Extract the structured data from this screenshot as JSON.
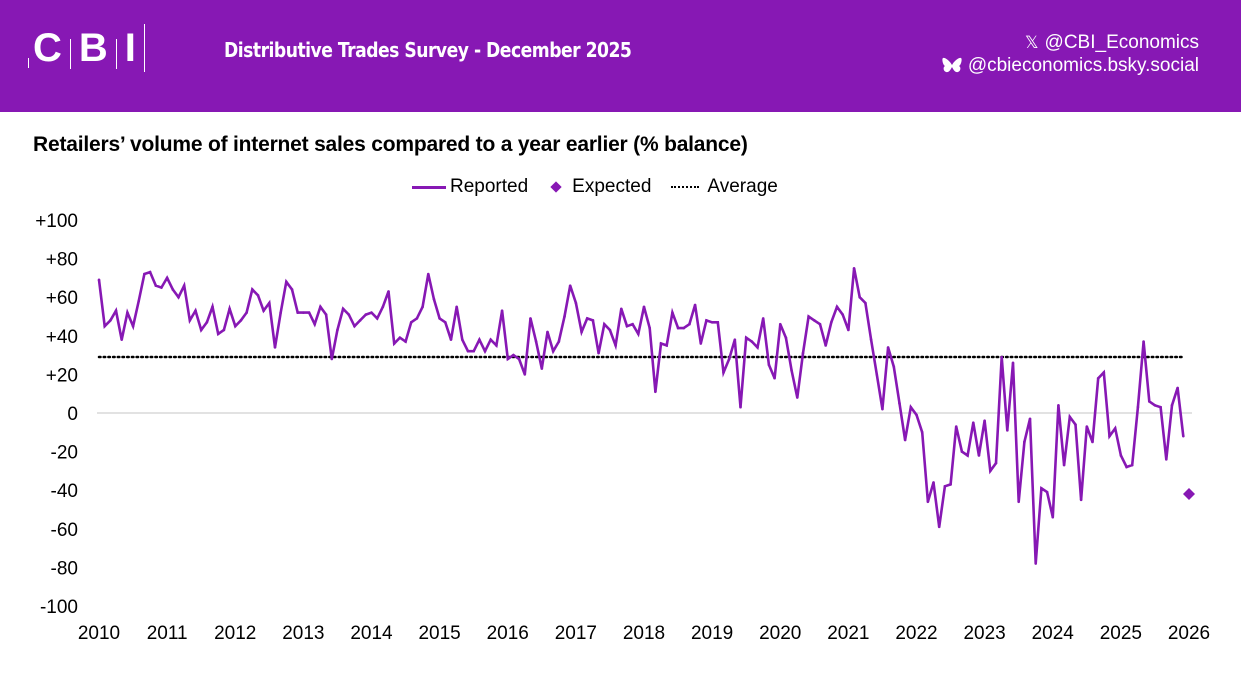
{
  "header": {
    "logo_letters": [
      "C",
      "B",
      "I"
    ],
    "survey_title": "Distributive Trades Survey - December 2025",
    "social": [
      {
        "icon": "x-icon",
        "glyph": "𝕏",
        "handle": "@CBI_Economics"
      },
      {
        "icon": "bluesky-butterfly-icon",
        "glyph": "",
        "handle": "@cbieconomics.bsky.social"
      }
    ]
  },
  "colors": {
    "brand": "#8718b4",
    "series": "#8718b4",
    "average": "#000000",
    "zero_line": "#d9d9d9"
  },
  "chart_data": {
    "type": "line",
    "title": "Retailers’ volume of internet sales compared to a year earlier (% balance)",
    "legend": {
      "placement": "top-center",
      "entries": [
        {
          "name": "Reported",
          "marker": "line"
        },
        {
          "name": "Expected",
          "marker": "diamond"
        },
        {
          "name": "Average",
          "marker": "dotted-line"
        }
      ]
    },
    "xlabel": "",
    "ylabel": "",
    "x_range": [
      2010,
      2026
    ],
    "ylim": [
      -100,
      100
    ],
    "y_ticks": [
      100,
      80,
      60,
      40,
      20,
      0,
      -20,
      -40,
      -60,
      -80,
      -100
    ],
    "y_tick_labels": [
      "+100",
      "+80",
      "+60",
      "+40",
      "+20",
      "0",
      "-20",
      "-40",
      "-60",
      "-80",
      "-100"
    ],
    "x_ticks": [
      2010,
      2011,
      2012,
      2013,
      2014,
      2015,
      2016,
      2017,
      2018,
      2019,
      2020,
      2021,
      2022,
      2023,
      2024,
      2025,
      2026
    ],
    "x_tick_labels": [
      "2010",
      "2011",
      "2012",
      "2013",
      "2014",
      "2015",
      "2016",
      "2017",
      "2018",
      "2019",
      "2020",
      "2021",
      "2022",
      "2023",
      "2024",
      "2025",
      "2026"
    ],
    "grid": false,
    "zero_line": true,
    "series": [
      {
        "name": "Reported",
        "start": "2010-01",
        "frequency": "monthly",
        "values": [
          69,
          45,
          48,
          53,
          38,
          52,
          45,
          58,
          72,
          73,
          66,
          65,
          70,
          64,
          60,
          66,
          48,
          53,
          43,
          47,
          55,
          41,
          43,
          54,
          45,
          48,
          52,
          64,
          61,
          53,
          57,
          34,
          52,
          68,
          64,
          52,
          52,
          52,
          46,
          55,
          51,
          28,
          43,
          54,
          51,
          45,
          48,
          51,
          52,
          49,
          55,
          63,
          36,
          39,
          37,
          47,
          49,
          55,
          72,
          59,
          49,
          47,
          38,
          55,
          38,
          32,
          32,
          38,
          32,
          38,
          35,
          53,
          28,
          30,
          28,
          20,
          49,
          37,
          23,
          42,
          32,
          37,
          50,
          66,
          57,
          42,
          49,
          48,
          31,
          46,
          43,
          35,
          54,
          45,
          46,
          41,
          55,
          44,
          11,
          36,
          35,
          52,
          44,
          44,
          46,
          56,
          36,
          48,
          47,
          47,
          21,
          28,
          38,
          3,
          39,
          37,
          34,
          49,
          25,
          18,
          46,
          39,
          22,
          8,
          31,
          50,
          48,
          46,
          35,
          47,
          55,
          51,
          43,
          75,
          60,
          57,
          38,
          20,
          2,
          34,
          24,
          5,
          -14,
          3,
          -1,
          -10,
          -46,
          -36,
          -59,
          -38,
          -37,
          -7,
          -20,
          -22,
          -5,
          -22,
          -4,
          -30,
          -26,
          29,
          -9,
          26,
          -46,
          -15,
          -3,
          -78,
          -39,
          -41,
          -54,
          4,
          -27,
          -2,
          -6,
          -45,
          -7,
          -15,
          18,
          21,
          -12,
          -8,
          -22,
          -28,
          -27,
          3,
          37,
          6,
          4,
          3,
          -24,
          4,
          13,
          -12
        ]
      },
      {
        "name": "Expected",
        "points": [
          {
            "x": "2026-01",
            "y": -42
          }
        ]
      },
      {
        "name": "Average",
        "constant": 29
      }
    ]
  }
}
